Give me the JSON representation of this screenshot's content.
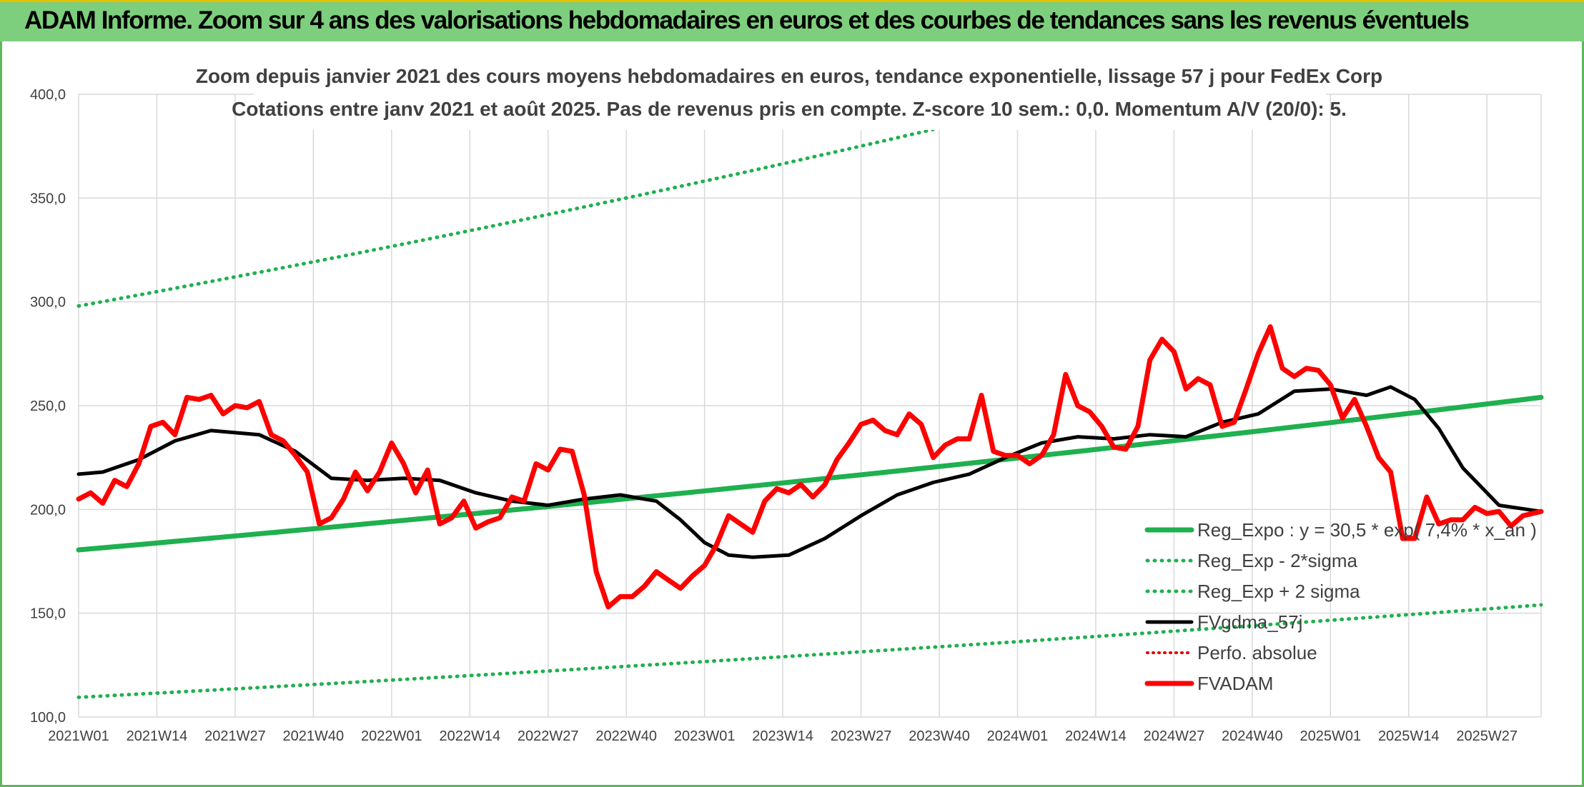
{
  "banner": {
    "title": "ADAM Informe. Zoom sur 4 ans des valorisations hebdomadaires en euros et des courbes de tendances sans les revenus éventuels"
  },
  "colors": {
    "banner_bg": "#7dcf7d",
    "reg_expo": "#1fb04f",
    "sigma": "#1fb04f",
    "fvgdma": "#000000",
    "perfo": "#e00000",
    "fvadam": "#ff0000",
    "grid": "#d9d9d9"
  },
  "chart_data": {
    "type": "line",
    "title": "Zoom depuis janvier 2021 des cours moyens hebdomadaires en euros, tendance exponentielle, lissage 57 j pour FedEx Corp",
    "subtitle": "Cotations entre janv 2021 et août 2025. Pas de revenus pris en compte. Z-score 10 sem.: 0,0. Momentum A/V (20/0): 5.",
    "xlabel": "",
    "ylabel": "",
    "ylim": [
      100,
      400
    ],
    "y_ticks": [
      "100,0",
      "150,0",
      "200,0",
      "250,0",
      "300,0",
      "350,0",
      "400,0"
    ],
    "x_ticks": [
      "2021W01",
      "2021W14",
      "2021W27",
      "2021W40",
      "2022W01",
      "2022W14",
      "2022W27",
      "2022W40",
      "2023W01",
      "2023W14",
      "2023W27",
      "2023W40",
      "2024W01",
      "2024W14",
      "2024W27",
      "2024W40",
      "2025W01",
      "2025W14",
      "2025W27"
    ],
    "x_index_range": [
      0,
      243
    ],
    "grid": true,
    "legend_position": "bottom-right",
    "series": [
      {
        "name": "Reg_Expo : y = 30,5 * exp( 7,4% * x_an )",
        "style": "solid",
        "x": [
          0,
          243
        ],
        "values": [
          180.5,
          254
        ]
      },
      {
        "name": "Reg_Exp - 2*sigma",
        "style": "dotted",
        "x": [
          0,
          243
        ],
        "values": [
          109.5,
          154
        ]
      },
      {
        "name": "Reg_Exp + 2 sigma",
        "style": "dotted",
        "x": [
          0,
          243
        ],
        "values": [
          298,
          458
        ]
      },
      {
        "name": "FVgdma_57j",
        "style": "solid",
        "x": [
          0,
          4,
          10,
          16,
          22,
          30,
          36,
          42,
          48,
          54,
          60,
          66,
          72,
          78,
          84,
          90,
          96,
          100,
          104,
          108,
          112,
          118,
          124,
          130,
          136,
          142,
          148,
          154,
          160,
          166,
          172,
          178,
          184,
          190,
          196,
          202,
          208,
          214,
          218,
          222,
          226,
          230,
          236,
          243
        ],
        "values": [
          217,
          218,
          224,
          233,
          238,
          236,
          228,
          215,
          214,
          215,
          214,
          208,
          204,
          202,
          205,
          207,
          204,
          195,
          184,
          178,
          177,
          178,
          186,
          197,
          207,
          213,
          217,
          225,
          232,
          235,
          234,
          236,
          235,
          242,
          246,
          257,
          258,
          255,
          259,
          253,
          239,
          220,
          202,
          199
        ]
      },
      {
        "name": "Perfo. absolue",
        "style": "dotted",
        "x": [],
        "values": []
      },
      {
        "name": "FVADAM",
        "style": "solid",
        "x": [
          0,
          2,
          4,
          6,
          8,
          10,
          12,
          14,
          16,
          18,
          20,
          22,
          24,
          26,
          28,
          30,
          32,
          34,
          36,
          38,
          40,
          42,
          44,
          46,
          48,
          50,
          52,
          54,
          56,
          58,
          60,
          62,
          64,
          66,
          68,
          70,
          72,
          74,
          76,
          78,
          80,
          82,
          84,
          86,
          88,
          90,
          92,
          94,
          96,
          98,
          100,
          102,
          104,
          106,
          108,
          110,
          112,
          114,
          116,
          118,
          120,
          122,
          124,
          126,
          128,
          130,
          132,
          134,
          136,
          138,
          140,
          142,
          144,
          146,
          148,
          150,
          152,
          154,
          156,
          158,
          160,
          162,
          164,
          166,
          168,
          170,
          172,
          174,
          176,
          178,
          180,
          182,
          184,
          186,
          188,
          190,
          192,
          194,
          196,
          198,
          200,
          202,
          204,
          206,
          208,
          210,
          212,
          214,
          216,
          218,
          220,
          222,
          224,
          226,
          228,
          230,
          232,
          234,
          236,
          238,
          240,
          243
        ],
        "values": [
          205,
          208,
          203,
          214,
          211,
          222,
          240,
          242,
          236,
          254,
          253,
          255,
          246,
          250,
          249,
          252,
          236,
          233,
          226,
          218,
          193,
          196,
          205,
          218,
          209,
          218,
          232,
          222,
          208,
          219,
          193,
          196,
          204,
          191,
          194,
          196,
          206,
          204,
          222,
          219,
          229,
          228,
          207,
          170,
          153,
          158,
          158,
          163,
          170,
          166,
          162,
          168,
          173,
          183,
          197,
          193,
          189,
          204,
          210,
          208,
          212,
          206,
          212,
          224,
          232,
          241,
          243,
          238,
          236,
          246,
          241,
          225,
          231,
          234,
          234,
          255,
          228,
          226,
          226,
          222,
          226,
          236,
          265,
          250,
          247,
          240,
          230,
          229,
          240,
          272,
          282,
          276,
          258,
          263,
          260,
          240,
          242,
          258,
          275,
          288,
          268,
          264,
          268,
          267,
          260,
          244,
          253,
          240,
          225,
          218,
          186,
          186,
          206,
          193,
          195,
          195,
          201,
          198,
          199,
          192,
          197,
          199
        ]
      }
    ]
  }
}
